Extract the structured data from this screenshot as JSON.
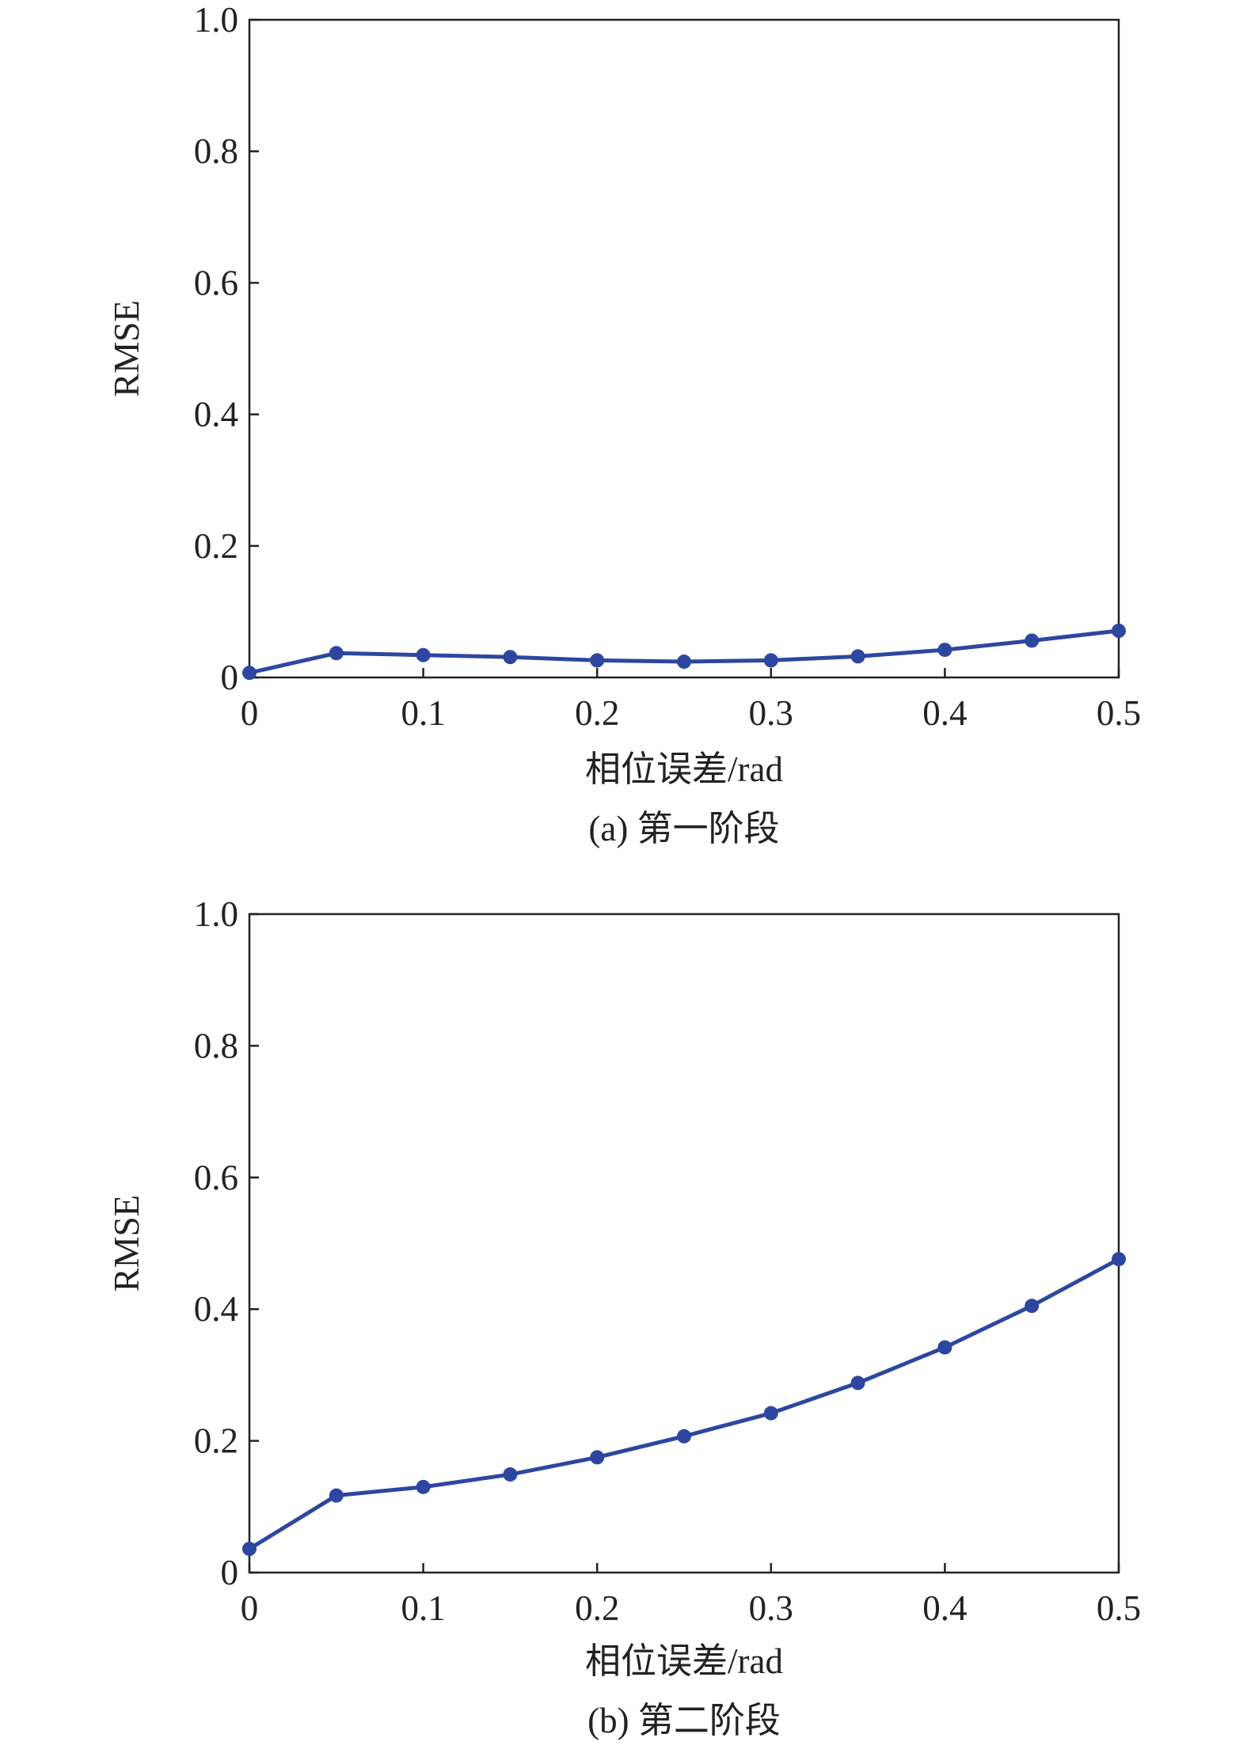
{
  "chart_data": [
    {
      "type": "line",
      "caption": "(a) 第一阶段",
      "xlabel": "相位误差/rad",
      "ylabel": "RMSE",
      "x": [
        0,
        0.05,
        0.1,
        0.15,
        0.2,
        0.25,
        0.3,
        0.35,
        0.4,
        0.45,
        0.5
      ],
      "values": [
        0.007,
        0.037,
        0.034,
        0.031,
        0.026,
        0.024,
        0.026,
        0.032,
        0.042,
        0.056,
        0.071
      ],
      "color": "#2d47a0",
      "xlim": [
        0,
        0.5
      ],
      "xticks": [
        0,
        0.1,
        0.2,
        0.3,
        0.4,
        0.5
      ],
      "ylim": [
        0,
        1
      ],
      "yticks": [
        0,
        0.2,
        0.4,
        0.6,
        0.8,
        {
          "value": 1,
          "label": "1.0"
        }
      ]
    },
    {
      "type": "line",
      "caption": "(b) 第二阶段",
      "xlabel": "相位误差/rad",
      "ylabel": "RMSE",
      "x": [
        0,
        0.05,
        0.1,
        0.15,
        0.2,
        0.25,
        0.3,
        0.35,
        0.4,
        0.45,
        0.5
      ],
      "values": [
        0.036,
        0.117,
        0.13,
        0.149,
        0.175,
        0.207,
        0.242,
        0.288,
        0.342,
        0.405,
        0.476
      ],
      "color": "#2d47a0",
      "xlim": [
        0,
        0.5
      ],
      "xticks": [
        0,
        0.1,
        0.2,
        0.3,
        0.4,
        0.5
      ],
      "ylim": [
        0,
        1
      ],
      "yticks": [
        0,
        0.2,
        0.4,
        0.6,
        0.8,
        {
          "value": 1,
          "label": "1.0"
        }
      ]
    }
  ]
}
